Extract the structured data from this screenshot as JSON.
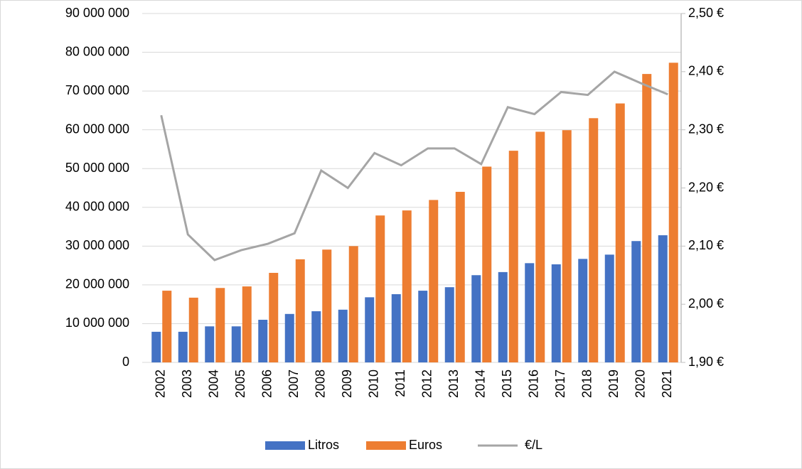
{
  "chart_data": {
    "type": "bar-line",
    "categories": [
      "2002",
      "2003",
      "2004",
      "2005",
      "2006",
      "2007",
      "2008",
      "2009",
      "2010",
      "2011",
      "2012",
      "2013",
      "2014",
      "2015",
      "2016",
      "2017",
      "2018",
      "2019",
      "2020",
      "2021"
    ],
    "series": [
      {
        "name": "Litros",
        "color": "#4472c4",
        "type": "bar",
        "values": [
          7900000,
          7900000,
          9300000,
          9300000,
          11000000,
          12500000,
          13200000,
          13600000,
          16800000,
          17600000,
          18500000,
          19400000,
          22500000,
          23300000,
          25600000,
          25300000,
          26700000,
          27800000,
          31300000,
          32800000
        ]
      },
      {
        "name": "Euros",
        "color": "#ed7d31",
        "type": "bar",
        "values": [
          18500000,
          16700000,
          19200000,
          19600000,
          23100000,
          26600000,
          29100000,
          30000000,
          37900000,
          39200000,
          41900000,
          44000000,
          50500000,
          54600000,
          59500000,
          59900000,
          63000000,
          66800000,
          74400000,
          77300000
        ]
      },
      {
        "name": "€/L",
        "color": "#a5a5a5",
        "type": "line",
        "axis": "y2",
        "values": [
          2.325,
          2.12,
          2.076,
          2.093,
          2.104,
          2.122,
          2.23,
          2.2,
          2.26,
          2.239,
          2.268,
          2.268,
          2.241,
          2.339,
          2.327,
          2.365,
          2.36,
          2.4,
          2.38,
          2.361
        ]
      }
    ],
    "ylim": [
      0,
      90000000
    ],
    "yticks": [
      0,
      {
        "value": 10000000,
        "label": "10 000 000"
      },
      {
        "value": 20000000,
        "label": "20 000 000"
      },
      {
        "value": 30000000,
        "label": "30 000 000"
      },
      {
        "value": 40000000,
        "label": "40 000 000"
      },
      {
        "value": 50000000,
        "label": "50 000 000"
      },
      {
        "value": 60000000,
        "label": "60 000 000"
      },
      {
        "value": 70000000,
        "label": "70 000 000"
      },
      {
        "value": 80000000,
        "label": "80 000 000"
      },
      {
        "value": 90000000,
        "label": "90 000 000"
      }
    ],
    "y2lim": [
      1.9,
      2.5
    ],
    "y2ticks": [
      {
        "value": 1.9,
        "label": "1,90 €"
      },
      {
        "value": 2.0,
        "label": "2,00 €"
      },
      {
        "value": 2.1,
        "label": "2,10 €"
      },
      {
        "value": 2.2,
        "label": "2,20 €"
      },
      {
        "value": 2.3,
        "label": "2,30 €"
      },
      {
        "value": 2.4,
        "label": "2,40 €"
      },
      {
        "value": 2.5,
        "label": "2,50 €"
      }
    ],
    "grid": true,
    "legend": "bottom"
  }
}
